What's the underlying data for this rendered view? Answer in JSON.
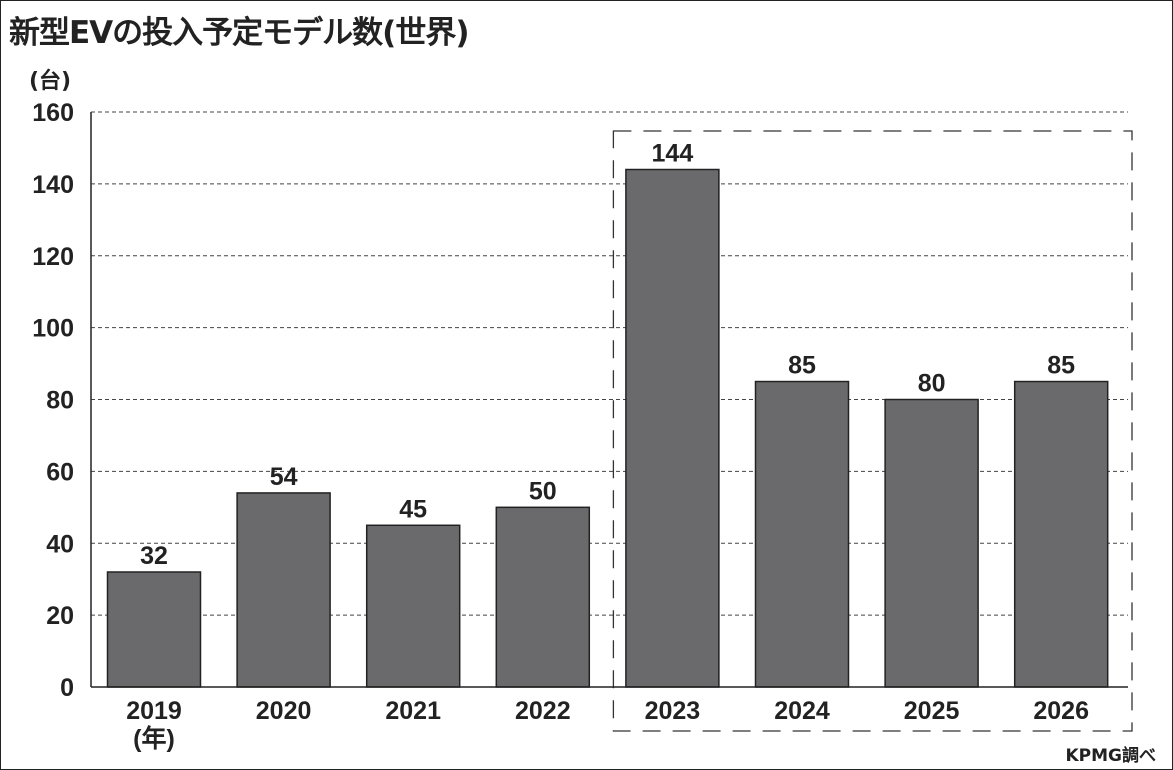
{
  "chart_data": {
    "type": "bar",
    "title": "新型EVの投入予定モデル数(世界)",
    "ylabel": "(台)",
    "xlabel": "(年)",
    "categories": [
      "2019",
      "2020",
      "2021",
      "2022",
      "2023",
      "2024",
      "2025",
      "2026"
    ],
    "values": [
      32,
      54,
      45,
      50,
      144,
      85,
      80,
      85
    ],
    "ylim": [
      0,
      160
    ],
    "yticks": [
      "0",
      "20",
      "40",
      "60",
      "80",
      "100",
      "120",
      "140",
      "160"
    ],
    "grid": true,
    "highlight_group": [
      "2023",
      "2024",
      "2025",
      "2026"
    ],
    "source": "KPMG調べ",
    "bar_color": "#6a6a6c"
  }
}
